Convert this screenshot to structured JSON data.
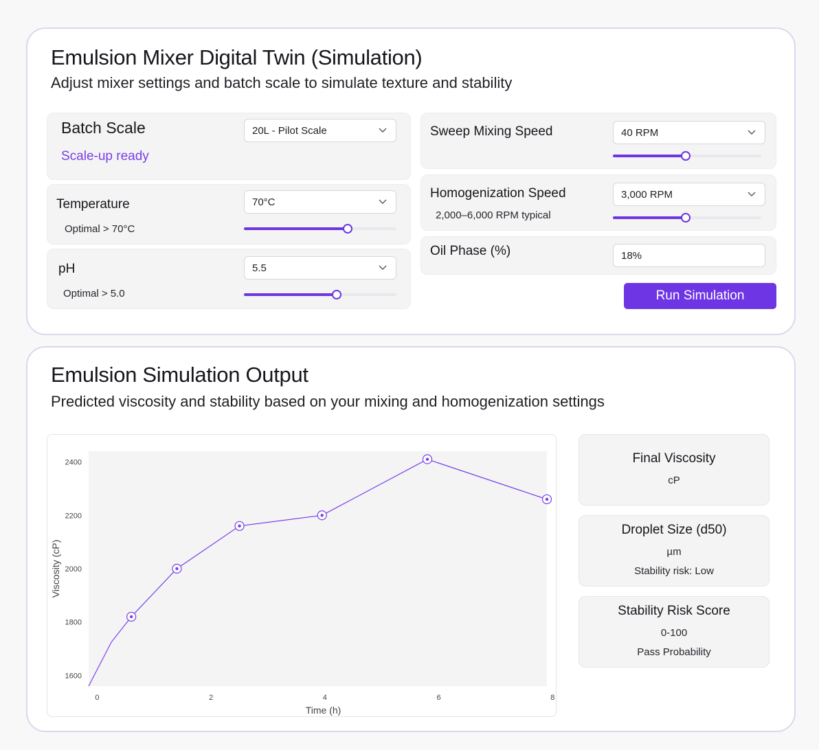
{
  "controls": {
    "title": "Emulsion Mixer Digital Twin (Simulation)",
    "subtitle": "Adjust mixer settings and batch scale to simulate texture and stability",
    "batch": {
      "label": "Batch Scale",
      "value": "20L - Pilot Scale",
      "status": "Scale-up ready",
      "status_color": "#7a3ee8"
    },
    "temperature": {
      "label": "Temperature",
      "value": "70°C",
      "hint": "Optimal > 70°C",
      "level": 0.68
    },
    "ph": {
      "label": "pH",
      "value": "5.5",
      "hint": "Optimal > 5.0",
      "level": 0.61
    },
    "sweep": {
      "label": "Sweep Mixing Speed",
      "value": "40 RPM",
      "level": 0.49
    },
    "homogenization": {
      "label": "Homogenization Speed",
      "value": "3,000 RPM",
      "hint": "2,000–6,000 RPM typical",
      "level": 0.49
    },
    "oil": {
      "label": "Oil Phase (%)",
      "value": "18%"
    },
    "run_label": "Run Simulation",
    "accent": "#6d35e3"
  },
  "output": {
    "title": "Emulsion Simulation Output",
    "subtitle": "Predicted viscosity and stability based on your mixing and homogenization settings",
    "metrics": [
      {
        "title": "Final Viscosity",
        "lines": [
          "cP"
        ]
      },
      {
        "title": "Droplet Size (d50)",
        "lines": [
          "µm",
          "Stability risk: Low"
        ]
      },
      {
        "title": "Stability Risk Score",
        "lines": [
          "0-100",
          "Pass Probability"
        ]
      }
    ]
  },
  "chart_data": {
    "type": "line",
    "title": "",
    "xlabel": "Time (h)",
    "ylabel": "Viscosity (cP)",
    "xticks": [
      0,
      2,
      4,
      6,
      8
    ],
    "yticks": [
      1600,
      1800,
      2000,
      2200,
      2400
    ],
    "xlim": [
      -0.15,
      7.9
    ],
    "ylim": [
      1560,
      2440
    ],
    "grid": false,
    "series": [
      {
        "values": [
          {
            "x": -0.15,
            "y": 1560
          },
          {
            "x": 0.25,
            "y": 1725
          },
          {
            "x": 0.6,
            "y": 1820
          },
          {
            "x": 1.4,
            "y": 2000
          },
          {
            "x": 2.5,
            "y": 2160
          },
          {
            "x": 3.95,
            "y": 2200
          },
          {
            "x": 5.8,
            "y": 2410
          },
          {
            "x": 7.9,
            "y": 2260
          }
        ],
        "markers": [
          false,
          false,
          true,
          true,
          true,
          true,
          true,
          true
        ],
        "color": "#7a3ee8"
      }
    ]
  }
}
